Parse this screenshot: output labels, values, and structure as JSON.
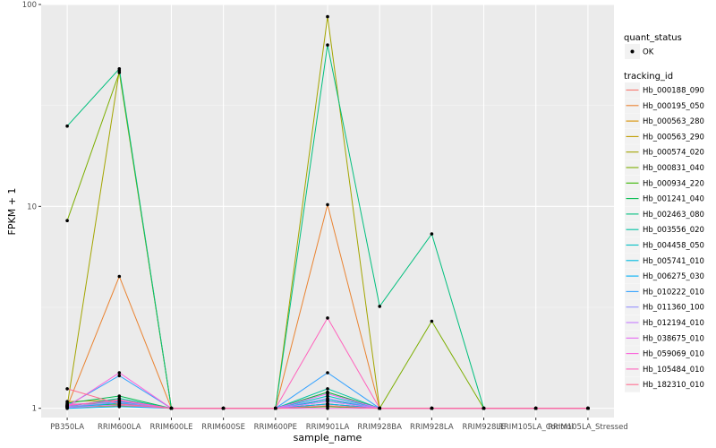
{
  "chart_data": {
    "type": "line",
    "title": "",
    "xlabel": "sample_name",
    "ylabel": "FPKM + 1",
    "y_scale": "log10",
    "ylim": [
      0.9,
      100
    ],
    "y_ticks": [
      1,
      10,
      100
    ],
    "y_tick_labels": [
      "1",
      "10",
      "100"
    ],
    "grid": true,
    "legend_position": "right",
    "categories": [
      "PB350LA",
      "RRIM600LA",
      "RRIM600LE",
      "RRIM600SE",
      "RRIM600PE",
      "RRIM901LA",
      "RRIM928BA",
      "RRIM928LA",
      "RRIM928LE",
      "RRIM105LA_Control",
      "RRIM105LA_Stressed"
    ],
    "point_legend": {
      "title": "quant_status",
      "label": "OK"
    },
    "line_legend_title": "tracking_id",
    "series": [
      {
        "name": "Hb_000188_090",
        "color": "#F8766D",
        "values": [
          1.05,
          1.05,
          1,
          1,
          1,
          1.05,
          1,
          1,
          1,
          1,
          1
        ]
      },
      {
        "name": "Hb_000195_050",
        "color": "#EA8331",
        "values": [
          1.02,
          4.5,
          1,
          1,
          1,
          10.2,
          1,
          1,
          1,
          1,
          1
        ]
      },
      {
        "name": "Hb_000563_280",
        "color": "#D89000",
        "values": [
          1.08,
          1.1,
          1,
          1,
          1,
          1.2,
          1,
          1,
          1,
          1,
          1
        ]
      },
      {
        "name": "Hb_000563_290",
        "color": "#C09B00",
        "values": [
          1.01,
          1.03,
          1,
          1,
          1,
          1.1,
          1,
          1,
          1,
          1,
          1
        ]
      },
      {
        "name": "Hb_000574_020",
        "color": "#A3A500",
        "values": [
          1.03,
          47,
          1,
          1,
          1,
          87,
          1,
          1,
          1,
          1,
          1
        ]
      },
      {
        "name": "Hb_000831_040",
        "color": "#7CAE00",
        "values": [
          8.5,
          46,
          1,
          1,
          1,
          1.05,
          1,
          2.7,
          1,
          1,
          1
        ]
      },
      {
        "name": "Hb_000934_220",
        "color": "#39B600",
        "values": [
          1.02,
          1.05,
          1,
          1,
          1,
          1.02,
          1,
          1,
          1,
          1,
          1
        ]
      },
      {
        "name": "Hb_001241_040",
        "color": "#00BB4E",
        "values": [
          1.06,
          1.15,
          1,
          1,
          1,
          1.2,
          1,
          1,
          1,
          1,
          1
        ]
      },
      {
        "name": "Hb_002463_080",
        "color": "#00BF7D",
        "values": [
          25,
          48,
          1,
          1,
          1,
          63,
          3.2,
          7.3,
          1,
          1,
          1
        ]
      },
      {
        "name": "Hb_003556_020",
        "color": "#00C1A3",
        "values": [
          1.02,
          1.12,
          1,
          1,
          1,
          1.25,
          1,
          1,
          1,
          1,
          1
        ]
      },
      {
        "name": "Hb_004458_050",
        "color": "#00BFC4",
        "values": [
          1.04,
          1.08,
          1,
          1,
          1,
          1.15,
          1,
          1,
          1,
          1,
          1
        ]
      },
      {
        "name": "Hb_005741_010",
        "color": "#00BAE0",
        "values": [
          1.01,
          1.06,
          1,
          1,
          1,
          1.1,
          1,
          1,
          1,
          1,
          1
        ]
      },
      {
        "name": "Hb_006275_030",
        "color": "#00B0F6",
        "values": [
          1.0,
          1.02,
          1,
          1,
          1,
          1.05,
          1,
          1,
          1,
          1,
          1
        ]
      },
      {
        "name": "Hb_010222_010",
        "color": "#35A2FF",
        "values": [
          1.03,
          1.45,
          1,
          1,
          1,
          1.5,
          1,
          1,
          1,
          1,
          1
        ]
      },
      {
        "name": "Hb_011360_100",
        "color": "#9590FF",
        "values": [
          1.02,
          1.07,
          1,
          1,
          1,
          1.12,
          1,
          1,
          1,
          1,
          1
        ]
      },
      {
        "name": "Hb_012194_010",
        "color": "#C77CFF",
        "values": [
          1.01,
          1.04,
          1,
          1,
          1,
          1.08,
          1,
          1,
          1,
          1,
          1
        ]
      },
      {
        "name": "Hb_038675_010",
        "color": "#E76BF3",
        "values": [
          1.04,
          1.09,
          1,
          1,
          1,
          1.18,
          1,
          1,
          1,
          1,
          1
        ]
      },
      {
        "name": "Hb_059069_010",
        "color": "#FA62DB",
        "values": [
          1.02,
          1.5,
          1,
          1,
          1,
          1.0,
          1,
          1,
          1,
          1,
          1
        ]
      },
      {
        "name": "Hb_105484_010",
        "color": "#FF62BC",
        "values": [
          1.03,
          1.1,
          1,
          1,
          1,
          2.8,
          1,
          1,
          1,
          1,
          1
        ]
      },
      {
        "name": "Hb_182310_010",
        "color": "#FF6C91",
        "values": [
          1.25,
          1.05,
          1,
          1,
          1,
          1.03,
          1,
          1,
          1,
          1,
          1
        ]
      }
    ]
  }
}
